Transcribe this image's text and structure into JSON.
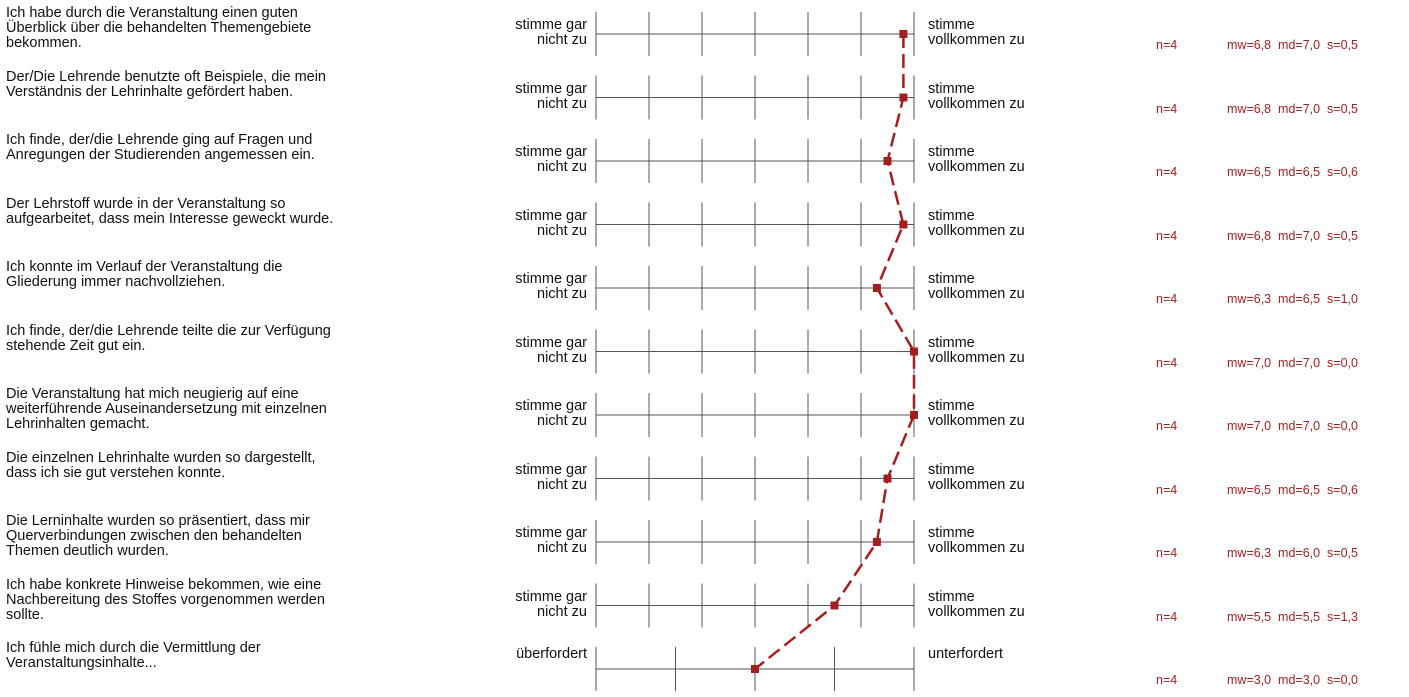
{
  "chart_data": {
    "type": "line",
    "xlim": [
      1,
      7
    ],
    "items": [
      {
        "question": "Ich habe durch die Veranstaltung einen guten Überblick über die behandelten Themengebiete bekommen.",
        "left": "stimme gar nicht zu",
        "right": "stimme vollkommen zu",
        "n": "n=4",
        "stats": "mw=6,8  md=7,0  s=0,5",
        "mean": 6.8
      },
      {
        "question": "Der/Die Lehrende benutzte oft Beispiele, die mein Verständnis der Lehrinhalte gefördert haben.",
        "left": "stimme gar nicht zu",
        "right": "stimme vollkommen zu",
        "n": "n=4",
        "stats": "mw=6,8  md=7,0  s=0,5",
        "mean": 6.8
      },
      {
        "question": "Ich finde, der/die Lehrende ging auf Fragen und Anregungen der Studierenden angemessen ein.",
        "left": "stimme gar nicht zu",
        "right": "stimme vollkommen zu",
        "n": "n=4",
        "stats": "mw=6,5  md=6,5  s=0,6",
        "mean": 6.5
      },
      {
        "question": "Der Lehrstoff wurde in der Veranstaltung so aufgearbeitet, dass mein Interesse geweckt wurde.",
        "left": "stimme gar nicht zu",
        "right": "stimme vollkommen zu",
        "n": "n=4",
        "stats": "mw=6,8  md=7,0  s=0,5",
        "mean": 6.8
      },
      {
        "question": "Ich konnte im Verlauf der Veranstaltung die Gliederung immer nachvollziehen.",
        "left": "stimme gar nicht zu",
        "right": "stimme vollkommen zu",
        "n": "n=4",
        "stats": "mw=6,3  md=6,5  s=1,0",
        "mean": 6.3
      },
      {
        "question": "Ich finde, der/die Lehrende teilte die zur Verfügung stehende Zeit gut ein.",
        "left": "stimme gar nicht zu",
        "right": "stimme vollkommen zu",
        "n": "n=4",
        "stats": "mw=7,0  md=7,0  s=0,0",
        "mean": 7.0
      },
      {
        "question": "Die Veranstaltung hat mich neugierig auf eine weiterführende Auseinandersetzung mit einzelnen Lehrinhalten gemacht.",
        "left": "stimme gar nicht zu",
        "right": "stimme vollkommen zu",
        "n": "n=4",
        "stats": "mw=7,0  md=7,0  s=0,0",
        "mean": 7.0
      },
      {
        "question": "Die einzelnen Lehrinhalte wurden so dargestellt, dass ich sie gut verstehen konnte.",
        "left": "stimme gar nicht zu",
        "right": "stimme vollkommen zu",
        "n": "n=4",
        "stats": "mw=6,5  md=6,5  s=0,6",
        "mean": 6.5
      },
      {
        "question": "Die Lerninhalte wurden so präsentiert, dass mir Querverbindungen zwischen den behandelten Themen deutlich wurden.",
        "left": "stimme gar nicht zu",
        "right": "stimme vollkommen zu",
        "n": "n=4",
        "stats": "mw=6,3  md=6,0  s=0,5",
        "mean": 6.3
      },
      {
        "question": "Ich habe konkrete Hinweise bekommen, wie eine Nachbereitung des Stoffes vorgenommen werden sollte.",
        "left": "stimme gar nicht zu",
        "right": "stimme vollkommen zu",
        "n": "n=4",
        "stats": "mw=5,5  md=5,5  s=1,3",
        "mean": 5.5
      },
      {
        "question": "Ich fühle mich durch die Vermittlung der Veranstaltungsinhalte...",
        "left": "überfordert",
        "right": "unterfordert",
        "n": "n=4",
        "stats": "mw=3,0  md=3,0  s=0,0",
        "mean": 3.0,
        "scale": 5
      }
    ]
  },
  "colors": {
    "profile": "#a31f1f",
    "text": "#111111",
    "stats": "#a31f1f",
    "grid": "#555555"
  }
}
